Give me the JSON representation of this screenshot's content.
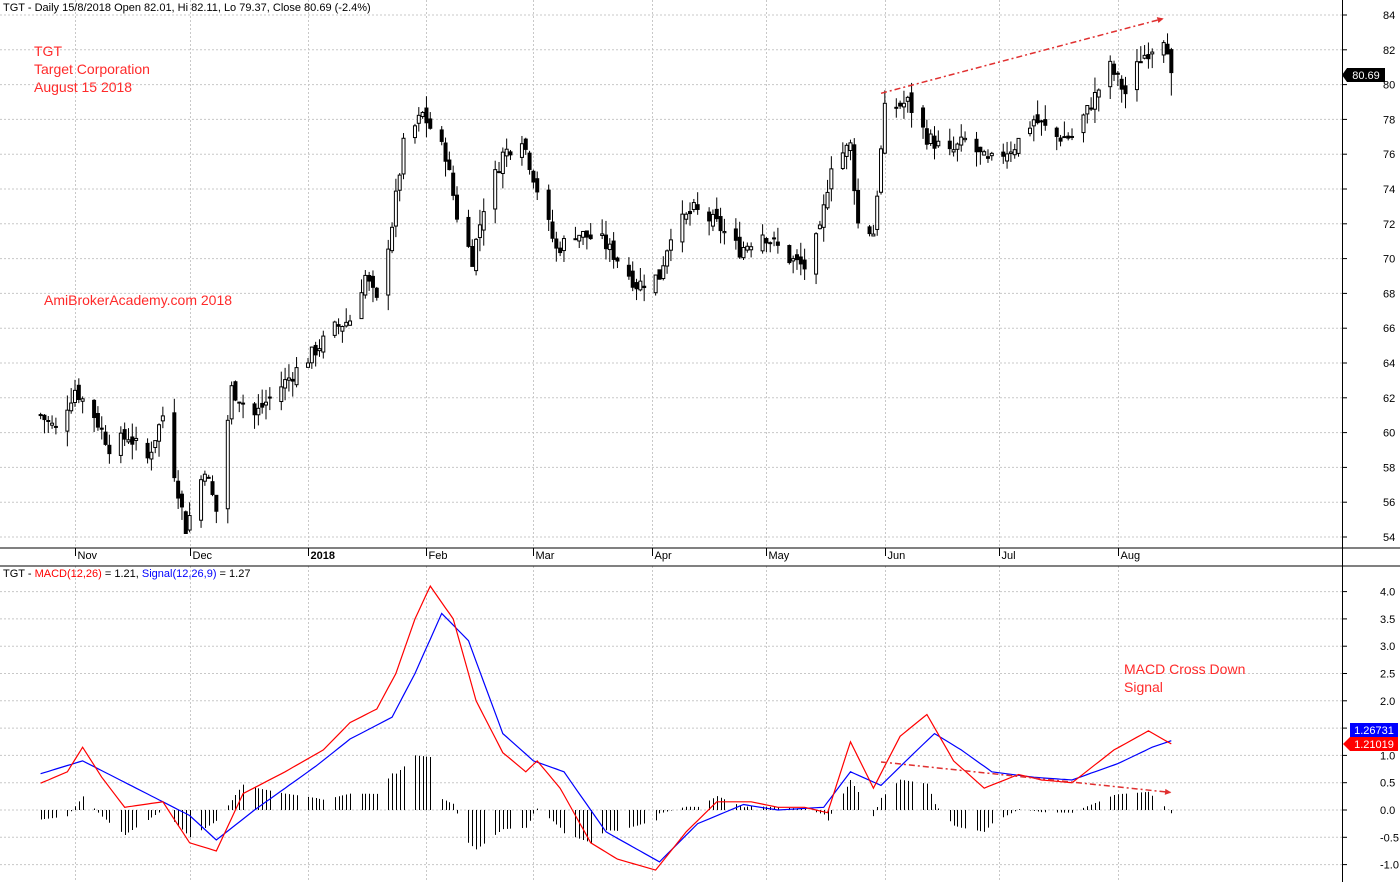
{
  "price_panel": {
    "header": "TGT - Daily 15/8/2018 Open 82.01, Hi 82.11, Lo 79.37, Close 80.69 (-2.4%)",
    "annotation_lines": [
      "TGT",
      "Target Corporation",
      "August 15 2018"
    ],
    "watermark": "AmiBrokerAcademy.com  2018",
    "last_price_label": "80.69"
  },
  "macd_panel": {
    "header_prefix": "TGT - ",
    "macd_label": "MACD(12,26)",
    "macd_value_text": " = 1.21, ",
    "signal_label": "Signal(12,26,9)",
    "signal_value_text": " = 1.27",
    "annotation_lines": [
      "MACD Cross Down",
      "Signal"
    ],
    "signal_value_tag": "1.26731",
    "macd_value_tag": "1.21019"
  },
  "colors": {
    "macd": "#ff0000",
    "signal": "#0000ff",
    "histogram": "#000000",
    "annotation": "#ff2a2a",
    "trendline": "#e03030",
    "grid": "#c8c8c8"
  },
  "chart_data": [
    {
      "type": "candlestick",
      "ticker": "TGT",
      "y_ticks": [
        "54",
        "56",
        "58",
        "60",
        "62",
        "64",
        "66",
        "68",
        "70",
        "72",
        "74",
        "76",
        "78",
        "80",
        "82",
        "84"
      ],
      "ylim": [
        53,
        84.5
      ],
      "month_labels": [
        "Nov",
        "Dec",
        "2018",
        "Feb",
        "Mar",
        "Apr",
        "May",
        "Jun",
        "Jul",
        "Aug"
      ],
      "grid": true,
      "trendline": {
        "from": [
          "2018-05-31",
          79.5
        ],
        "to": [
          "2018-08-13",
          83.8
        ]
      },
      "waypoints": [
        [
          "2017-10-23",
          61.0
        ],
        [
          "2017-10-27",
          60.2
        ],
        [
          "2017-11-01",
          62.5
        ],
        [
          "2017-11-06",
          61.0
        ],
        [
          "2017-11-10",
          59.2
        ],
        [
          "2017-11-15",
          59.8
        ],
        [
          "2017-11-20",
          58.5
        ],
        [
          "2017-11-24",
          61.0
        ],
        [
          "2017-11-30",
          54.5
        ],
        [
          "2017-12-05",
          58.0
        ],
        [
          "2017-12-08",
          55.5
        ],
        [
          "2017-12-12",
          62.5
        ],
        [
          "2017-12-18",
          61.0
        ],
        [
          "2017-12-22",
          62.0
        ],
        [
          "2018-01-02",
          64.5
        ],
        [
          "2018-01-08",
          66.0
        ],
        [
          "2018-01-12",
          66.5
        ],
        [
          "2018-01-16",
          69.0
        ],
        [
          "2018-01-19",
          67.5
        ],
        [
          "2018-01-23",
          72.0
        ],
        [
          "2018-01-26",
          76.5
        ],
        [
          "2018-01-31",
          78.3
        ],
        [
          "2018-02-06",
          76.0
        ],
        [
          "2018-02-09",
          72.5
        ],
        [
          "2018-02-13",
          70.0
        ],
        [
          "2018-02-16",
          73.0
        ],
        [
          "2018-02-21",
          76.0
        ],
        [
          "2018-02-26",
          77.0
        ],
        [
          "2018-03-02",
          74.0
        ],
        [
          "2018-03-07",
          70.5
        ],
        [
          "2018-03-12",
          71.5
        ],
        [
          "2018-03-19",
          71.0
        ],
        [
          "2018-03-23",
          70.0
        ],
        [
          "2018-03-28",
          68.5
        ],
        [
          "2018-04-03",
          69.0
        ],
        [
          "2018-04-06",
          71.5
        ],
        [
          "2018-04-12",
          72.8
        ],
        [
          "2018-04-18",
          72.0
        ],
        [
          "2018-04-24",
          70.5
        ],
        [
          "2018-04-30",
          71.5
        ],
        [
          "2018-05-07",
          70.0
        ],
        [
          "2018-05-11",
          69.5
        ],
        [
          "2018-05-15",
          71.5
        ],
        [
          "2018-05-18",
          75.5
        ],
        [
          "2018-05-23",
          76.5
        ],
        [
          "2018-05-25",
          72.0
        ],
        [
          "2018-05-29",
          71.5
        ],
        [
          "2018-06-01",
          78.5
        ],
        [
          "2018-06-07",
          79.0
        ],
        [
          "2018-06-12",
          77.0
        ],
        [
          "2018-06-18",
          76.0
        ],
        [
          "2018-06-22",
          76.8
        ],
        [
          "2018-06-28",
          75.5
        ],
        [
          "2018-07-05",
          76.5
        ],
        [
          "2018-07-10",
          78.0
        ],
        [
          "2018-07-16",
          77.0
        ],
        [
          "2018-07-20",
          77.0
        ],
        [
          "2018-07-24",
          78.5
        ],
        [
          "2018-07-30",
          81.0
        ],
        [
          "2018-08-03",
          79.5
        ],
        [
          "2018-08-07",
          81.5
        ],
        [
          "2018-08-13",
          82.8
        ],
        [
          "2018-08-14",
          82.2
        ],
        [
          "2018-08-15",
          80.69
        ]
      ],
      "last_bar": {
        "date": "2018-08-15",
        "open": 82.01,
        "high": 82.11,
        "low": 79.37,
        "close": 80.69
      }
    },
    {
      "type": "line",
      "title": "MACD(12,26) / Signal(12,26,9)",
      "y_ticks": [
        "-1.0",
        "-0.5",
        "0.0",
        "0.5",
        "1.0",
        "1.5",
        "2.0",
        "2.5",
        "3.0",
        "3.5",
        "4.0"
      ],
      "ylim": [
        -1.25,
        4.35
      ],
      "grid": true,
      "macd_current": 1.21,
      "signal_current": 1.27,
      "trendline": {
        "from": [
          "2018-05-31",
          0.88
        ],
        "to": [
          "2018-08-15",
          0.32
        ]
      },
      "series": [
        {
          "name": "MACD(12,26)",
          "values": [
            [
              "2017-10-20",
              0.4
            ],
            [
              "2017-10-30",
              0.7
            ],
            [
              "2017-11-03",
              1.15
            ],
            [
              "2017-11-08",
              0.6
            ],
            [
              "2017-11-14",
              0.05
            ],
            [
              "2017-11-24",
              0.15
            ],
            [
              "2017-12-01",
              -0.6
            ],
            [
              "2017-12-08",
              -0.75
            ],
            [
              "2017-12-15",
              0.3
            ],
            [
              "2017-12-26",
              0.7
            ],
            [
              "2018-01-05",
              1.1
            ],
            [
              "2018-01-12",
              1.6
            ],
            [
              "2018-01-19",
              1.85
            ],
            [
              "2018-01-24",
              2.5
            ],
            [
              "2018-01-29",
              3.5
            ],
            [
              "2018-02-02",
              4.1
            ],
            [
              "2018-02-08",
              3.5
            ],
            [
              "2018-02-14",
              2.0
            ],
            [
              "2018-02-21",
              1.05
            ],
            [
              "2018-02-27",
              0.7
            ],
            [
              "2018-03-02",
              0.9
            ],
            [
              "2018-03-08",
              0.4
            ],
            [
              "2018-03-16",
              -0.6
            ],
            [
              "2018-03-23",
              -0.9
            ],
            [
              "2018-04-02",
              -1.1
            ],
            [
              "2018-04-10",
              -0.4
            ],
            [
              "2018-04-18",
              0.15
            ],
            [
              "2018-04-27",
              0.15
            ],
            [
              "2018-05-04",
              0.05
            ],
            [
              "2018-05-11",
              0.05
            ],
            [
              "2018-05-17",
              -0.05
            ],
            [
              "2018-05-23",
              1.25
            ],
            [
              "2018-05-29",
              0.4
            ],
            [
              "2018-06-05",
              1.35
            ],
            [
              "2018-06-12",
              1.75
            ],
            [
              "2018-06-19",
              0.9
            ],
            [
              "2018-06-27",
              0.4
            ],
            [
              "2018-07-06",
              0.65
            ],
            [
              "2018-07-12",
              0.55
            ],
            [
              "2018-07-20",
              0.5
            ],
            [
              "2018-07-31",
              1.1
            ],
            [
              "2018-08-09",
              1.45
            ],
            [
              "2018-08-15",
              1.21
            ]
          ]
        },
        {
          "name": "Signal(12,26,9)",
          "values": [
            [
              "2017-10-20",
              0.6
            ],
            [
              "2017-11-03",
              0.9
            ],
            [
              "2017-11-17",
              0.4
            ],
            [
              "2017-12-01",
              -0.1
            ],
            [
              "2017-12-08",
              -0.55
            ],
            [
              "2017-12-18",
              0.0
            ],
            [
              "2018-01-03",
              0.8
            ],
            [
              "2018-01-12",
              1.3
            ],
            [
              "2018-01-23",
              1.7
            ],
            [
              "2018-01-29",
              2.5
            ],
            [
              "2018-02-05",
              3.6
            ],
            [
              "2018-02-12",
              3.1
            ],
            [
              "2018-02-21",
              1.4
            ],
            [
              "2018-03-01",
              0.9
            ],
            [
              "2018-03-09",
              0.7
            ],
            [
              "2018-03-20",
              -0.4
            ],
            [
              "2018-04-03",
              -0.95
            ],
            [
              "2018-04-13",
              -0.25
            ],
            [
              "2018-04-25",
              0.1
            ],
            [
              "2018-05-04",
              0.0
            ],
            [
              "2018-05-16",
              0.05
            ],
            [
              "2018-05-23",
              0.7
            ],
            [
              "2018-05-31",
              0.45
            ],
            [
              "2018-06-08",
              1.0
            ],
            [
              "2018-06-14",
              1.4
            ],
            [
              "2018-06-21",
              1.1
            ],
            [
              "2018-06-29",
              0.7
            ],
            [
              "2018-07-10",
              0.6
            ],
            [
              "2018-07-20",
              0.55
            ],
            [
              "2018-08-01",
              0.85
            ],
            [
              "2018-08-10",
              1.15
            ],
            [
              "2018-08-15",
              1.27
            ]
          ]
        }
      ]
    }
  ]
}
